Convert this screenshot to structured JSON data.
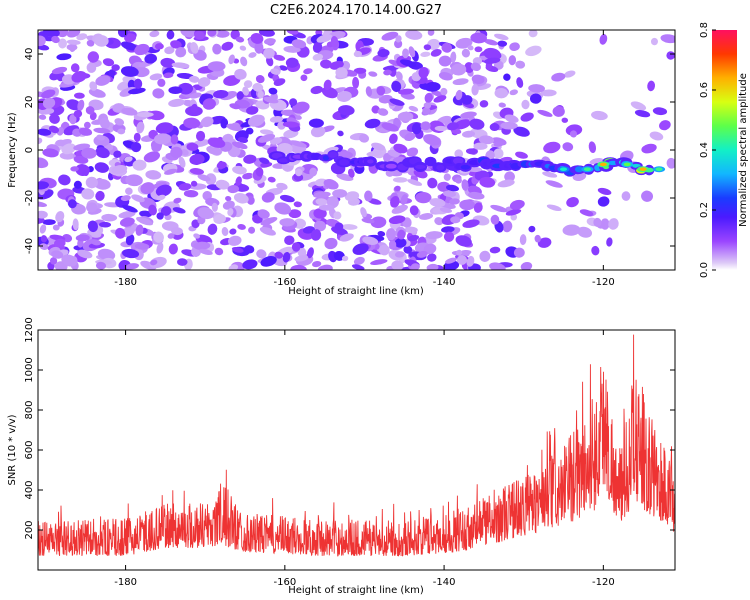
{
  "title": "C2E6.2024.170.14.00.G27",
  "chart_data": [
    {
      "type": "heatmap",
      "xlabel": "Height of straight line (km)",
      "ylabel": "Frequency (Hz)",
      "xlim": [
        -191,
        -111
      ],
      "ylim": [
        -50,
        50
      ],
      "x_ticks": [
        -180,
        -160,
        -140,
        -120
      ],
      "y_ticks": [
        -40,
        -20,
        0,
        20,
        40
      ],
      "colorbar": {
        "label": "Normalized spectral amplitude",
        "range": [
          0,
          0.8
        ],
        "ticks": [
          "0.0",
          "0.2",
          "0.4",
          "0.6",
          "0.8"
        ]
      },
      "signal_track": [
        {
          "x": -161,
          "y": -3,
          "amp": 0.25
        },
        {
          "x": -158,
          "y": -3,
          "amp": 0.25
        },
        {
          "x": -155,
          "y": -3,
          "amp": 0.34
        },
        {
          "x": -148,
          "y": -6,
          "amp": 0.2
        },
        {
          "x": -141,
          "y": -6,
          "amp": 0.25
        },
        {
          "x": -133,
          "y": -6,
          "amp": 0.35
        },
        {
          "x": -130,
          "y": -6,
          "amp": 0.38
        },
        {
          "x": -127,
          "y": -6,
          "amp": 0.42
        },
        {
          "x": -125,
          "y": -8,
          "amp": 0.5
        },
        {
          "x": -122,
          "y": -8,
          "amp": 0.55
        },
        {
          "x": -120,
          "y": -6,
          "amp": 0.8
        },
        {
          "x": -117,
          "y": -6,
          "amp": 0.6
        },
        {
          "x": -115,
          "y": -8,
          "amp": 0.8
        },
        {
          "x": -113,
          "y": -8,
          "amp": 0.55
        }
      ],
      "grid": false
    },
    {
      "type": "line",
      "xlabel": "Height of straight line (km)",
      "ylabel": "SNR (10 * v/v)",
      "xlim": [
        -191,
        -111
      ],
      "ylim": [
        0,
        1200
      ],
      "x_ticks": [
        -180,
        -160,
        -140,
        -120
      ],
      "y_ticks": [
        200,
        400,
        600,
        800,
        1000,
        1200
      ],
      "line_color": "#ee3333",
      "envelope": [
        {
          "x": -191,
          "base": 150,
          "amp": 130
        },
        {
          "x": -180,
          "base": 150,
          "amp": 140
        },
        {
          "x": -175,
          "base": 190,
          "amp": 180
        },
        {
          "x": -170,
          "base": 190,
          "amp": 200
        },
        {
          "x": -168,
          "base": 200,
          "amp": 300
        },
        {
          "x": -165,
          "base": 170,
          "amp": 150
        },
        {
          "x": -155,
          "base": 150,
          "amp": 140
        },
        {
          "x": -145,
          "base": 150,
          "amp": 130
        },
        {
          "x": -138,
          "base": 170,
          "amp": 170
        },
        {
          "x": -133,
          "base": 220,
          "amp": 250
        },
        {
          "x": -129,
          "base": 260,
          "amp": 300
        },
        {
          "x": -125,
          "base": 300,
          "amp": 380
        },
        {
          "x": -121,
          "base": 380,
          "amp": 650
        },
        {
          "x": -120,
          "base": 500,
          "amp": 750
        },
        {
          "x": -118,
          "base": 300,
          "amp": 300
        },
        {
          "x": -116,
          "base": 420,
          "amp": 750
        },
        {
          "x": -114,
          "base": 350,
          "amp": 500
        },
        {
          "x": -112,
          "base": 300,
          "amp": 400
        },
        {
          "x": -111,
          "base": 250,
          "amp": 250
        }
      ],
      "grid": false
    }
  ]
}
